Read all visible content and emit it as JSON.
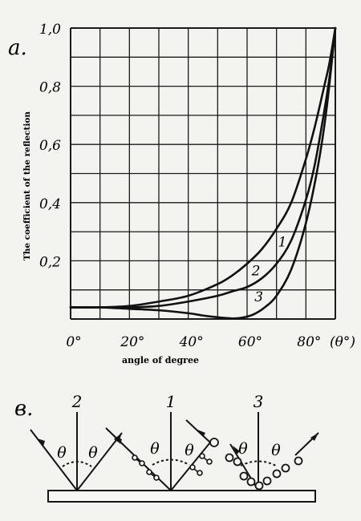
{
  "panel_a": {
    "letter": "a.",
    "chart_data": {
      "type": "line",
      "title": "",
      "xlabel": "angle of degree",
      "ylabel": "The coefficient of the reflection",
      "x_unit_label": "(θ°)",
      "xlim": [
        0,
        90
      ],
      "ylim": [
        0,
        1
      ],
      "x_ticks": [
        0,
        20,
        40,
        60,
        80
      ],
      "x_tick_labels": [
        "0°",
        "20°",
        "40°",
        "60°",
        "80°"
      ],
      "y_ticks": [
        0.2,
        0.4,
        0.6,
        0.8,
        1.0
      ],
      "y_tick_labels": [
        "0,2",
        "0,4",
        "0,6",
        "0,8",
        "1,0"
      ],
      "grid": true,
      "grid_x_step": 10,
      "grid_y_step": 0.1,
      "series": [
        {
          "name": "1",
          "x": [
            0,
            10,
            20,
            30,
            40,
            50,
            55,
            60,
            65,
            70,
            75,
            80,
            83,
            86,
            88,
            90
          ],
          "y": [
            0.04,
            0.04,
            0.045,
            0.06,
            0.08,
            0.12,
            0.15,
            0.19,
            0.24,
            0.31,
            0.4,
            0.55,
            0.66,
            0.79,
            0.88,
            1.0
          ]
        },
        {
          "name": "2",
          "x": [
            0,
            10,
            20,
            30,
            40,
            50,
            55,
            60,
            65,
            70,
            75,
            80,
            83,
            86,
            88,
            90
          ],
          "y": [
            0.04,
            0.04,
            0.04,
            0.045,
            0.06,
            0.08,
            0.095,
            0.11,
            0.14,
            0.19,
            0.27,
            0.41,
            0.53,
            0.7,
            0.83,
            1.0
          ]
        },
        {
          "name": "3",
          "x": [
            0,
            10,
            20,
            30,
            40,
            45,
            50,
            55,
            58,
            62,
            66,
            70,
            75,
            80,
            84,
            87,
            90
          ],
          "y": [
            0.04,
            0.04,
            0.035,
            0.03,
            0.02,
            0.012,
            0.006,
            0.002,
            0.004,
            0.015,
            0.04,
            0.08,
            0.17,
            0.33,
            0.52,
            0.72,
            1.0
          ]
        }
      ],
      "series_label_positions": [
        {
          "name": "1",
          "x": 72,
          "y": 0.25
        },
        {
          "name": "2",
          "x": 63,
          "y": 0.15
        },
        {
          "name": "3",
          "x": 64,
          "y": 0.06
        }
      ]
    }
  },
  "panel_b": {
    "letter": "в.",
    "angle_symbol": "θ",
    "diagrams": [
      {
        "number": "2",
        "particles": "none"
      },
      {
        "number": "1",
        "particles": "dumbbell"
      },
      {
        "number": "3",
        "particles": "scattered"
      }
    ]
  }
}
